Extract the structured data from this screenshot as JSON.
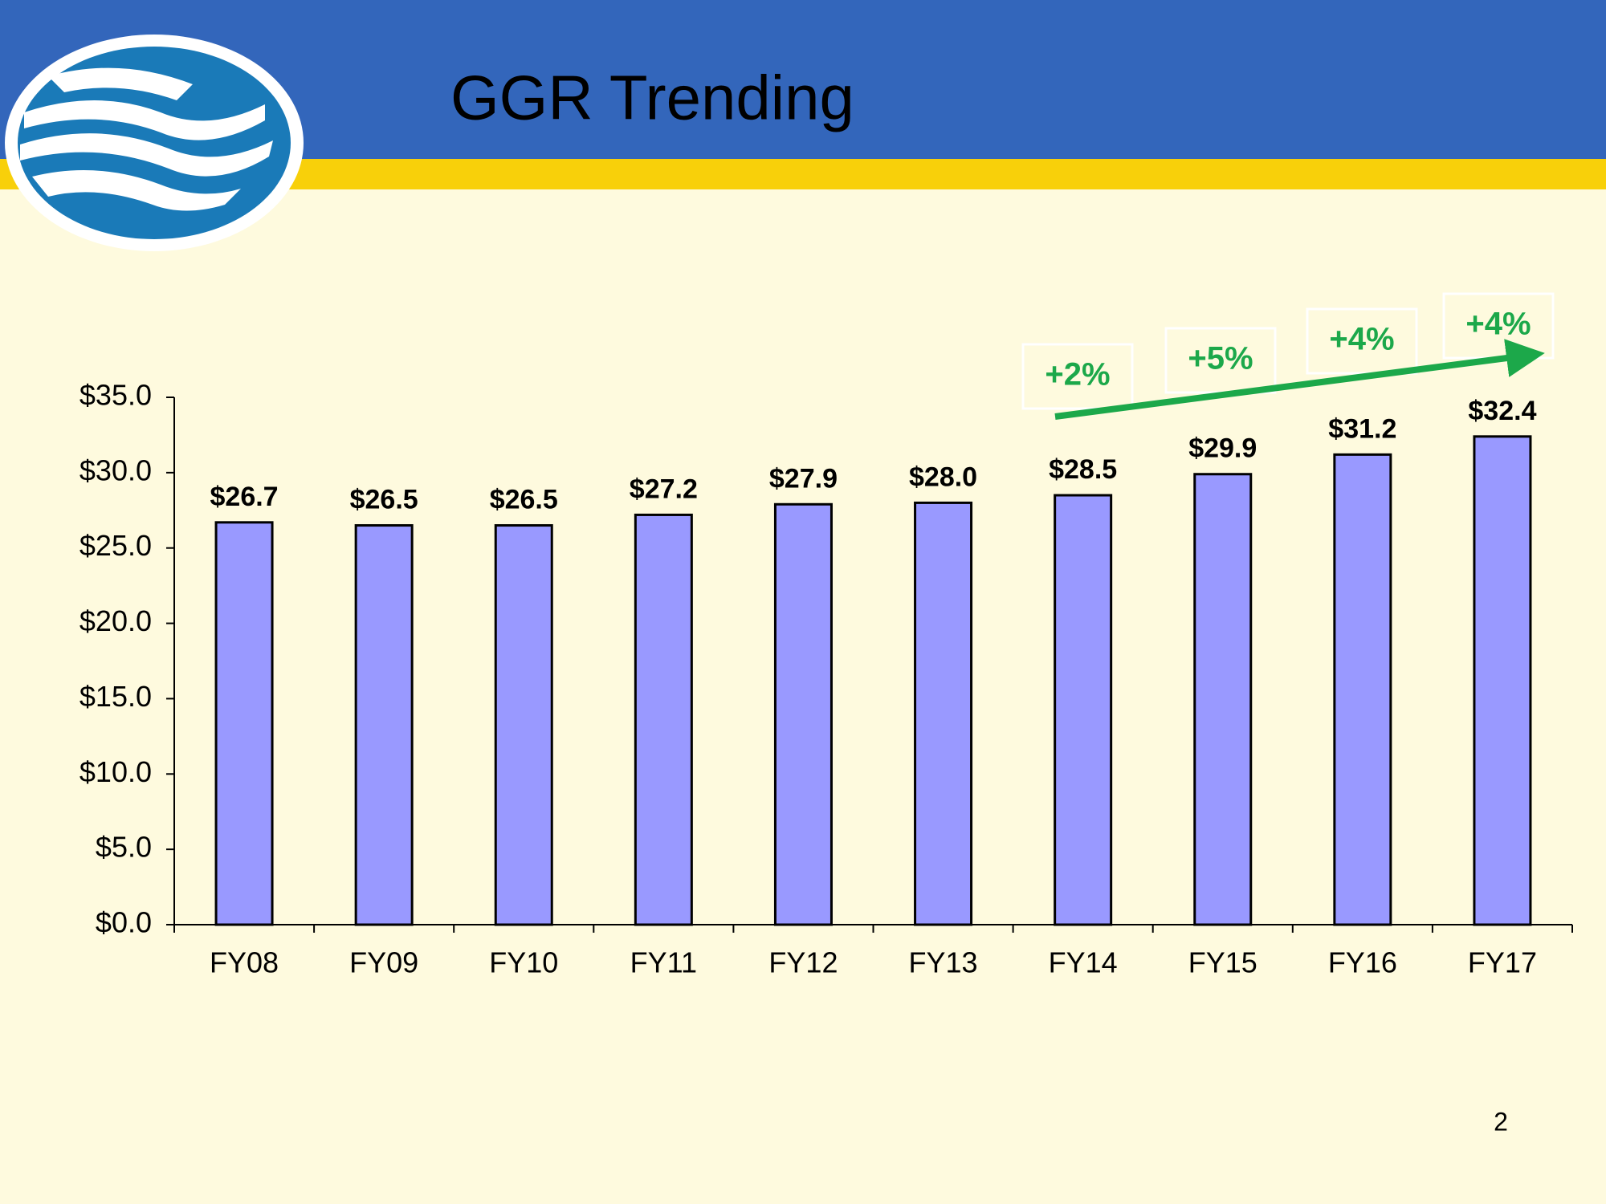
{
  "title": "GGR Trending",
  "page_number": "2",
  "chart_data": {
    "type": "bar",
    "categories": [
      "FY08",
      "FY09",
      "FY10",
      "FY11",
      "FY12",
      "FY13",
      "FY14",
      "FY15",
      "FY16",
      "FY17"
    ],
    "values": [
      26.7,
      26.5,
      26.5,
      27.2,
      27.9,
      28.0,
      28.5,
      29.9,
      31.2,
      32.4
    ],
    "value_labels": [
      "$26.7",
      "$26.5",
      "$26.5",
      "$27.2",
      "$27.9",
      "$28.0",
      "$28.5",
      "$29.9",
      "$31.2",
      "$32.4"
    ],
    "color": "#9999ff",
    "ylim": [
      0,
      35
    ],
    "yticks": [
      {
        "value": 0,
        "label": "$0.0"
      },
      {
        "value": 5,
        "label": "$5.0"
      },
      {
        "value": 10,
        "label": "$10.0"
      },
      {
        "value": 15,
        "label": "$15.0"
      },
      {
        "value": 20,
        "label": "$20.0"
      },
      {
        "value": 25,
        "label": "$25.0"
      },
      {
        "value": 30,
        "label": "$30.0"
      },
      {
        "value": 35,
        "label": "$35.0"
      }
    ],
    "annotations": [
      "+2%",
      "+5%",
      "+4%",
      "+4%"
    ],
    "annotation_color": "#1ca84a"
  }
}
